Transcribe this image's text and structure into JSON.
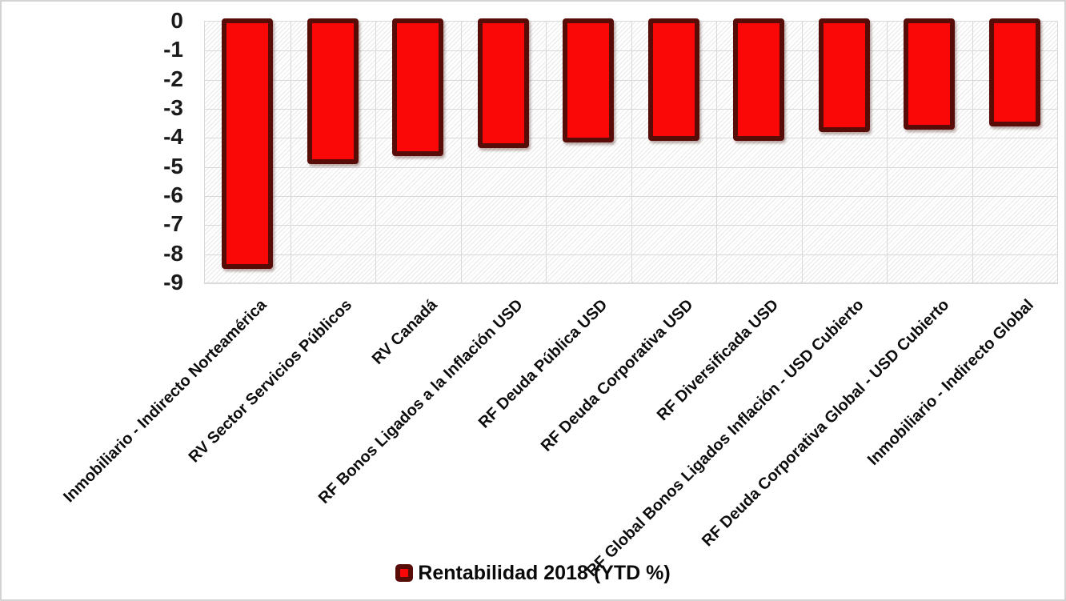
{
  "chart_data": {
    "type": "bar",
    "title": "",
    "xlabel": "",
    "ylabel": "",
    "legend": "Rentabilidad 2018 (YTD %)",
    "legend_position": "bottom",
    "grid": true,
    "categories": [
      "Inmobiliario - Indirecto Norteamérica",
      "RV Sector Servicios Públicos",
      "RV Canadá",
      "RF Bonos Ligados a la Inflación USD",
      "RF Deuda Pública USD",
      "RF Deuda Corporativa USD",
      "RF Diversificada USD",
      "RF Global Bonos Ligados Inflación - USD Cubierto",
      "RF Deuda Corporativa Global - USD Cubierto",
      "Inmobiliario - Indirecto Global"
    ],
    "values": [
      -8.4,
      -4.8,
      -4.5,
      -4.25,
      -4.05,
      -4.0,
      -4.0,
      -3.7,
      -3.6,
      -3.5
    ],
    "ylim": [
      0,
      -9
    ],
    "yticks": [
      "0",
      "-1",
      "-2",
      "-3",
      "-4",
      "-5",
      "-6",
      "-7",
      "-8",
      "-9"
    ],
    "colors": {
      "bar_fill": "#fa0808",
      "bar_border": "#570c07",
      "gridline": "#d9d9d9",
      "axis_text": "#1a1a1a"
    }
  }
}
